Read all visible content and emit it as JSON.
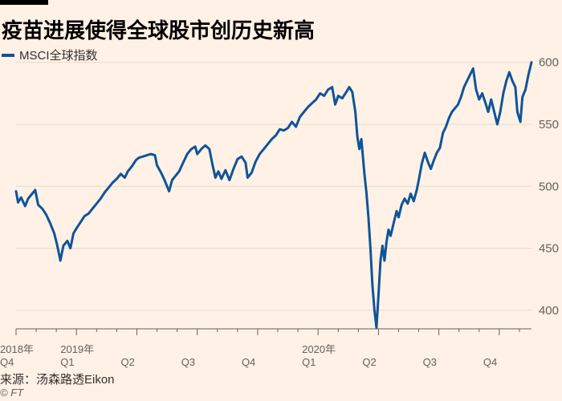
{
  "title": "疫苗进展使得全球股市创历史新高",
  "legend_label": "MSCI全球指数",
  "source": "来源：汤森路透Eikon",
  "credit": "© FT",
  "colors": {
    "background": "#fff1e5",
    "line": "#0f5499",
    "grid": "#e5d9ce",
    "text": "#66605c"
  },
  "chart_data": {
    "type": "line",
    "title": "疫苗进展使得全球股市创历史新高",
    "xlabel": "",
    "ylabel": "",
    "ylim": [
      385,
      605
    ],
    "yticks": [
      400,
      450,
      500,
      550,
      600
    ],
    "grid": true,
    "legend_position": "top-left",
    "x_tick_labels": [
      {
        "month": 0,
        "label": "2018年",
        "sublabel": "Q4"
      },
      {
        "month": 3,
        "label": "2019年",
        "sublabel": "Q1"
      },
      {
        "month": 6,
        "label": "",
        "sublabel": "Q2"
      },
      {
        "month": 9,
        "label": "",
        "sublabel": "Q3"
      },
      {
        "month": 12,
        "label": "",
        "sublabel": "Q4"
      },
      {
        "month": 15,
        "label": "2020年",
        "sublabel": "Q1"
      },
      {
        "month": 18,
        "label": "",
        "sublabel": "Q2"
      },
      {
        "month": 21,
        "label": "",
        "sublabel": "Q3"
      },
      {
        "month": 24,
        "label": "",
        "sublabel": "Q4"
      }
    ],
    "series": [
      {
        "name": "MSCI全球指数",
        "points": [
          [
            0.0,
            496
          ],
          [
            0.1,
            487
          ],
          [
            0.25,
            491
          ],
          [
            0.45,
            484
          ],
          [
            0.6,
            490
          ],
          [
            0.8,
            494
          ],
          [
            0.95,
            497
          ],
          [
            1.1,
            485
          ],
          [
            1.3,
            482
          ],
          [
            1.5,
            477
          ],
          [
            1.7,
            470
          ],
          [
            1.9,
            462
          ],
          [
            2.05,
            452
          ],
          [
            2.2,
            440
          ],
          [
            2.35,
            452
          ],
          [
            2.55,
            456
          ],
          [
            2.7,
            450
          ],
          [
            2.85,
            462
          ],
          [
            3.0,
            466
          ],
          [
            3.2,
            471
          ],
          [
            3.4,
            476
          ],
          [
            3.6,
            478
          ],
          [
            3.8,
            482
          ],
          [
            4.0,
            486
          ],
          [
            4.2,
            490
          ],
          [
            4.4,
            495
          ],
          [
            4.6,
            499
          ],
          [
            4.8,
            503
          ],
          [
            5.0,
            506
          ],
          [
            5.2,
            510
          ],
          [
            5.4,
            507
          ],
          [
            5.55,
            512
          ],
          [
            5.75,
            516
          ],
          [
            5.95,
            521
          ],
          [
            6.1,
            523
          ],
          [
            6.3,
            524
          ],
          [
            6.5,
            525
          ],
          [
            6.7,
            526
          ],
          [
            6.9,
            525
          ],
          [
            7.0,
            517
          ],
          [
            7.2,
            511
          ],
          [
            7.35,
            506
          ],
          [
            7.5,
            500
          ],
          [
            7.6,
            496
          ],
          [
            7.75,
            505
          ],
          [
            7.9,
            508
          ],
          [
            8.1,
            512
          ],
          [
            8.3,
            519
          ],
          [
            8.5,
            526
          ],
          [
            8.7,
            530
          ],
          [
            8.9,
            532
          ],
          [
            9.0,
            526
          ],
          [
            9.2,
            530
          ],
          [
            9.4,
            533
          ],
          [
            9.6,
            530
          ],
          [
            9.75,
            518
          ],
          [
            9.9,
            507
          ],
          [
            10.05,
            512
          ],
          [
            10.2,
            506
          ],
          [
            10.4,
            513
          ],
          [
            10.6,
            505
          ],
          [
            10.8,
            514
          ],
          [
            11.0,
            522
          ],
          [
            11.2,
            524
          ],
          [
            11.4,
            519
          ],
          [
            11.5,
            507
          ],
          [
            11.7,
            511
          ],
          [
            11.9,
            520
          ],
          [
            12.1,
            526
          ],
          [
            12.3,
            530
          ],
          [
            12.5,
            534
          ],
          [
            12.7,
            538
          ],
          [
            12.9,
            541
          ],
          [
            13.1,
            546
          ],
          [
            13.3,
            545
          ],
          [
            13.5,
            547
          ],
          [
            13.7,
            552
          ],
          [
            13.9,
            548
          ],
          [
            14.1,
            556
          ],
          [
            14.3,
            560
          ],
          [
            14.5,
            564
          ],
          [
            14.7,
            567
          ],
          [
            14.9,
            570
          ],
          [
            15.1,
            575
          ],
          [
            15.3,
            573
          ],
          [
            15.5,
            578
          ],
          [
            15.7,
            580
          ],
          [
            15.85,
            566
          ],
          [
            16.0,
            573
          ],
          [
            16.2,
            571
          ],
          [
            16.4,
            576
          ],
          [
            16.55,
            580
          ],
          [
            16.7,
            576
          ],
          [
            16.85,
            560
          ],
          [
            16.95,
            540
          ],
          [
            17.05,
            530
          ],
          [
            17.15,
            538
          ],
          [
            17.3,
            510
          ],
          [
            17.4,
            495
          ],
          [
            17.5,
            475
          ],
          [
            17.6,
            450
          ],
          [
            17.7,
            420
          ],
          [
            17.8,
            400
          ],
          [
            17.9,
            386
          ],
          [
            18.0,
            412
          ],
          [
            18.1,
            440
          ],
          [
            18.2,
            452
          ],
          [
            18.3,
            440
          ],
          [
            18.4,
            455
          ],
          [
            18.5,
            465
          ],
          [
            18.6,
            460
          ],
          [
            18.75,
            470
          ],
          [
            18.9,
            480
          ],
          [
            19.0,
            475
          ],
          [
            19.15,
            485
          ],
          [
            19.3,
            490
          ],
          [
            19.45,
            486
          ],
          [
            19.6,
            494
          ],
          [
            19.75,
            488
          ],
          [
            19.9,
            497
          ],
          [
            20.0,
            505
          ],
          [
            20.15,
            518
          ],
          [
            20.3,
            527
          ],
          [
            20.45,
            520
          ],
          [
            20.6,
            514
          ],
          [
            20.75,
            521
          ],
          [
            20.9,
            527
          ],
          [
            21.05,
            531
          ],
          [
            21.2,
            543
          ],
          [
            21.35,
            548
          ],
          [
            21.5,
            555
          ],
          [
            21.65,
            560
          ],
          [
            21.8,
            563
          ],
          [
            21.95,
            566
          ],
          [
            22.1,
            572
          ],
          [
            22.25,
            580
          ],
          [
            22.4,
            585
          ],
          [
            22.55,
            590
          ],
          [
            22.7,
            595
          ],
          [
            22.85,
            578
          ],
          [
            23.0,
            570
          ],
          [
            23.15,
            575
          ],
          [
            23.3,
            568
          ],
          [
            23.45,
            560
          ],
          [
            23.6,
            570
          ],
          [
            23.75,
            560
          ],
          [
            23.9,
            550
          ],
          [
            24.05,
            560
          ],
          [
            24.2,
            575
          ],
          [
            24.35,
            585
          ],
          [
            24.5,
            592
          ],
          [
            24.65,
            585
          ],
          [
            24.8,
            580
          ],
          [
            24.9,
            560
          ],
          [
            25.05,
            552
          ],
          [
            25.15,
            572
          ],
          [
            25.3,
            578
          ],
          [
            25.45,
            590
          ],
          [
            25.6,
            600
          ]
        ]
      }
    ]
  }
}
